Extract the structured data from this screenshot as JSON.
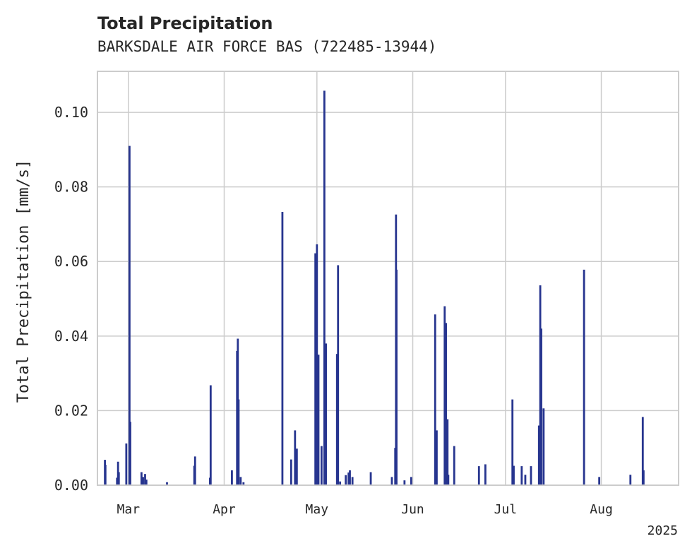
{
  "chart_data": {
    "type": "bar",
    "title": "Total Precipitation",
    "subtitle": "BARKSDALE AIR FORCE BAS (722485-13944)",
    "xlabel": "",
    "ylabel": "Total Precipitation [mm/s]",
    "year_label": "2025",
    "x_range": [
      "2025-02-19",
      "2025-08-26"
    ],
    "ylim": [
      0,
      0.111
    ],
    "y_ticks": [
      0.0,
      0.02,
      0.04,
      0.06,
      0.08,
      0.1
    ],
    "y_tick_labels": [
      "0.00",
      "0.02",
      "0.04",
      "0.06",
      "0.08",
      "0.10"
    ],
    "x_ticks": [
      "2025-03-01",
      "2025-04-01",
      "2025-05-01",
      "2025-06-01",
      "2025-07-01",
      "2025-08-01"
    ],
    "x_tick_labels": [
      "Mar",
      "Apr",
      "May",
      "Jun",
      "Jul",
      "Aug"
    ],
    "grid": true,
    "color": "#27358f",
    "series": [
      {
        "x": [
          "2025-02-21T10:00",
          "2025-02-21T14:00",
          "2025-02-25T08:00",
          "2025-02-25T16:00",
          "2025-02-25T22:00",
          "2025-02-28T08:00",
          "2025-03-01T09:00",
          "2025-03-01T15:00",
          "2025-03-05T06:00",
          "2025-03-05T18:00",
          "2025-03-06T10:00",
          "2025-03-06T20:00",
          "2025-03-13T12:00",
          "2025-03-22T08:00",
          "2025-03-22T14:00",
          "2025-03-27T10:00",
          "2025-03-27T15:00",
          "2025-04-03T12:00",
          "2025-04-05T04:00",
          "2025-04-05T10:00",
          "2025-04-05T16:00",
          "2025-04-06T08:00",
          "2025-04-07T06:00",
          "2025-04-19T20:00",
          "2025-04-22T16:00",
          "2025-04-23T22:00",
          "2025-04-24T12:00",
          "2025-04-30T12:00",
          "2025-05-01T00:00",
          "2025-05-01T12:00",
          "2025-05-02T12:00",
          "2025-05-03T10:00",
          "2025-05-03T22:00",
          "2025-05-07T12:00",
          "2025-05-07T20:00",
          "2025-05-08T12:00",
          "2025-05-10T08:00",
          "2025-05-11T06:00",
          "2025-05-11T16:00",
          "2025-05-12T12:00",
          "2025-05-18T10:00",
          "2025-05-25T06:00",
          "2025-05-26T08:00",
          "2025-05-26T14:00",
          "2025-05-26T18:00",
          "2025-05-29T08:00",
          "2025-05-31T12:00",
          "2025-06-08T06:00",
          "2025-06-08T18:00",
          "2025-06-11T08:00",
          "2025-06-11T18:00",
          "2025-06-12T06:00",
          "2025-06-12T12:00",
          "2025-06-14T10:00",
          "2025-06-22T10:00",
          "2025-06-24T12:00",
          "2025-07-03T06:00",
          "2025-07-03T16:00",
          "2025-07-06T06:00",
          "2025-07-07T10:00",
          "2025-07-09T06:00",
          "2025-07-11T20:00",
          "2025-07-12T06:00",
          "2025-07-12T14:00",
          "2025-07-13T08:00",
          "2025-07-26T10:00",
          "2025-07-31T08:00",
          "2025-08-10T10:00",
          "2025-08-14T10:00",
          "2025-08-14T16:00"
        ],
        "values": [
          0.0068,
          0.0055,
          0.002,
          0.0063,
          0.0035,
          0.0112,
          0.091,
          0.017,
          0.0035,
          0.0022,
          0.003,
          0.0015,
          0.0008,
          0.0052,
          0.0077,
          0.002,
          0.0268,
          0.004,
          0.036,
          0.0393,
          0.023,
          0.0022,
          0.0008,
          0.0733,
          0.0069,
          0.0147,
          0.0098,
          0.0622,
          0.0646,
          0.035,
          0.0105,
          0.1058,
          0.038,
          0.0352,
          0.059,
          0.001,
          0.0027,
          0.0034,
          0.004,
          0.0022,
          0.0035,
          0.0022,
          0.01,
          0.0726,
          0.0578,
          0.0013,
          0.0022,
          0.0458,
          0.0147,
          0.048,
          0.0435,
          0.0177,
          0.0028,
          0.0105,
          0.0051,
          0.0056,
          0.023,
          0.0052,
          0.0051,
          0.0028,
          0.0051,
          0.016,
          0.0536,
          0.042,
          0.0206,
          0.0578,
          0.0022,
          0.0028,
          0.0183,
          0.004
        ]
      }
    ]
  }
}
